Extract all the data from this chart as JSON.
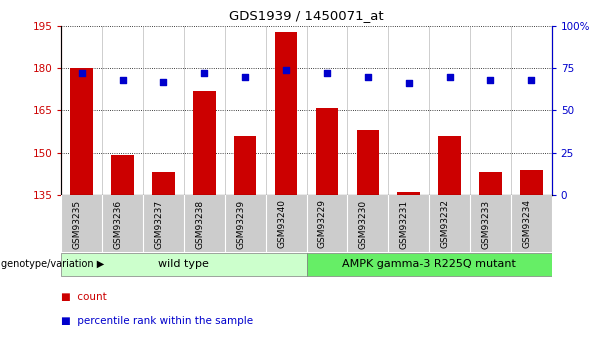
{
  "title": "GDS1939 / 1450071_at",
  "categories": [
    "GSM93235",
    "GSM93236",
    "GSM93237",
    "GSM93238",
    "GSM93239",
    "GSM93240",
    "GSM93229",
    "GSM93230",
    "GSM93231",
    "GSM93232",
    "GSM93233",
    "GSM93234"
  ],
  "bar_values": [
    180,
    149,
    143,
    172,
    156,
    193,
    166,
    158,
    136,
    156,
    143,
    144
  ],
  "dot_values": [
    72,
    68,
    67,
    72,
    70,
    74,
    72,
    70,
    66,
    70,
    68,
    68
  ],
  "ylim_left": [
    135,
    195
  ],
  "ylim_right": [
    0,
    100
  ],
  "yticks_left": [
    135,
    150,
    165,
    180,
    195
  ],
  "yticks_right": [
    0,
    25,
    50,
    75,
    100
  ],
  "yticklabels_right": [
    "0",
    "25",
    "50",
    "75",
    "100%"
  ],
  "bar_color": "#cc0000",
  "dot_color": "#0000cc",
  "bar_width": 0.55,
  "plot_bg_color": "#ffffff",
  "group1_label": "wild type",
  "group2_label": "AMPK gamma-3 R225Q mutant",
  "group1_indices": [
    0,
    1,
    2,
    3,
    4,
    5
  ],
  "group2_indices": [
    6,
    7,
    8,
    9,
    10,
    11
  ],
  "group1_color": "#ccffcc",
  "group2_color": "#66ee66",
  "genotype_label": "genotype/variation",
  "legend_count_label": "count",
  "legend_pct_label": "percentile rank within the sample",
  "tick_color_left": "#cc0000",
  "tick_color_right": "#0000cc",
  "ticklabel_gray_bg": "#cccccc",
  "separator_color": "#ffffff"
}
